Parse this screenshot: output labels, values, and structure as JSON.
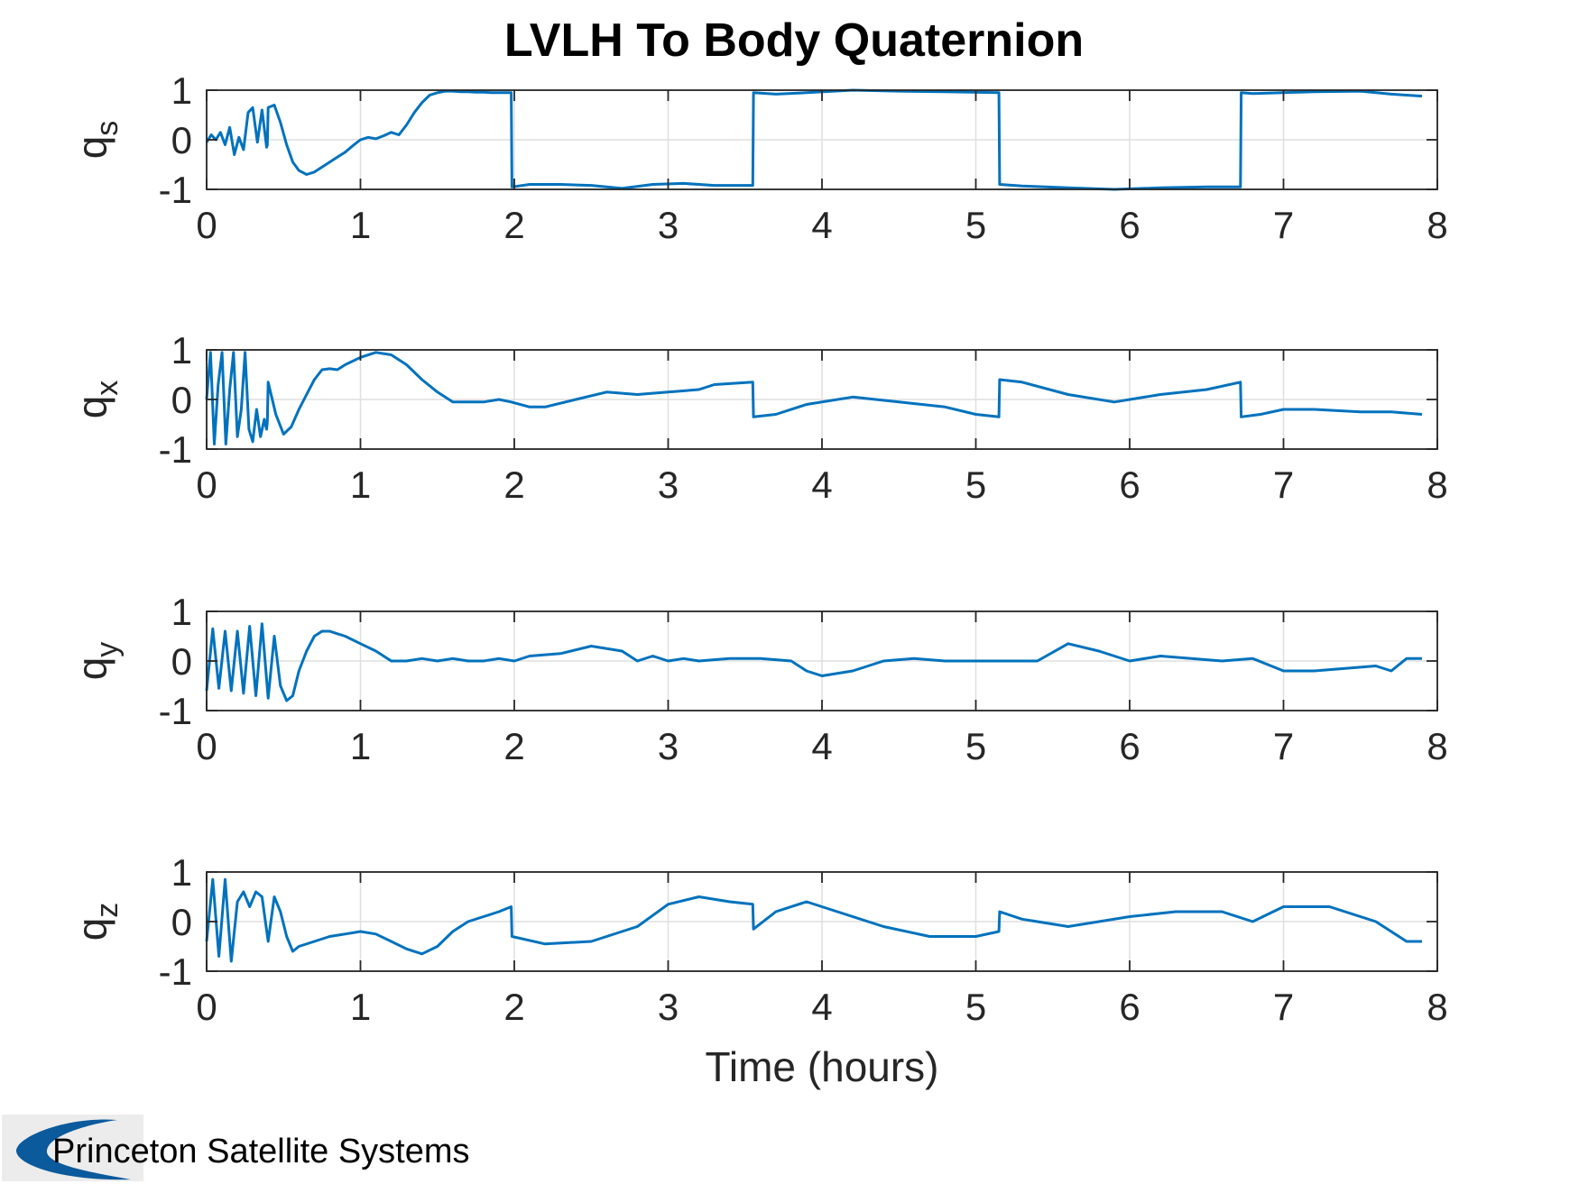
{
  "figure_title": "LVLH To Body Quaternion",
  "brand": {
    "text": "Princeton Satellite Systems",
    "logo_color": "#0a5a9c"
  },
  "colors": {
    "line": "#0072bd",
    "axes": "#262626",
    "grid": "#dfdfdf"
  },
  "chart_data": [
    {
      "type": "line",
      "title": "LVLH To Body Quaternion",
      "ylabel": {
        "main": "q",
        "sub": "s"
      },
      "xlabel": "",
      "xlim": [
        0,
        8
      ],
      "ylim": [
        -1,
        1
      ],
      "xticks": [
        "0",
        "1",
        "2",
        "3",
        "4",
        "5",
        "6",
        "7",
        "8"
      ],
      "yticks": [
        "1",
        "0",
        "-1"
      ],
      "grid": true,
      "series": [
        {
          "x": [
            0,
            0.03,
            0.06,
            0.09,
            0.12,
            0.15,
            0.18,
            0.21,
            0.24,
            0.27,
            0.3,
            0.33,
            0.36,
            0.39,
            0.395,
            0.4,
            0.44,
            0.48,
            0.52,
            0.56,
            0.6,
            0.65,
            0.7,
            0.75,
            0.8,
            0.85,
            0.9,
            0.95,
            1,
            1.05,
            1.1,
            1.15,
            1.2,
            1.25,
            1.3,
            1.35,
            1.4,
            1.45,
            1.5,
            1.55,
            1.6,
            1.65,
            1.7,
            1.75,
            1.8,
            1.85,
            1.9,
            1.98,
            1.985,
            2.1,
            2.3,
            2.5,
            2.7,
            2.9,
            3.1,
            3.3,
            3.55,
            3.555,
            3.7,
            3.9,
            4.2,
            4.5,
            4.8,
            5.15,
            5.155,
            5.3,
            5.6,
            5.9,
            6.2,
            6.5,
            6.72,
            6.725,
            6.8,
            7,
            7.2,
            7.5,
            7.7,
            7.9
          ],
          "y": [
            -0.05,
            0.1,
            0.0,
            0.15,
            -0.1,
            0.25,
            -0.3,
            0.05,
            -0.2,
            0.55,
            0.65,
            -0.05,
            0.6,
            -0.15,
            -0.1,
            0.65,
            0.7,
            0.35,
            -0.1,
            -0.45,
            -0.62,
            -0.7,
            -0.65,
            -0.55,
            -0.45,
            -0.35,
            -0.25,
            -0.12,
            0.0,
            0.05,
            0.02,
            0.08,
            0.15,
            0.1,
            0.3,
            0.55,
            0.75,
            0.9,
            0.95,
            0.98,
            0.98,
            0.97,
            0.97,
            0.96,
            0.96,
            0.95,
            0.95,
            0.95,
            -0.95,
            -0.9,
            -0.9,
            -0.92,
            -0.98,
            -0.9,
            -0.88,
            -0.92,
            -0.92,
            0.95,
            0.92,
            0.95,
            1.0,
            0.98,
            0.97,
            0.95,
            -0.9,
            -0.93,
            -0.97,
            -1.0,
            -0.97,
            -0.95,
            -0.95,
            0.95,
            0.93,
            0.95,
            0.97,
            0.98,
            0.92,
            0.88
          ]
        }
      ]
    },
    {
      "type": "line",
      "title": "",
      "ylabel": {
        "main": "q",
        "sub": "x"
      },
      "xlabel": "",
      "xlim": [
        0,
        8
      ],
      "ylim": [
        -1,
        1
      ],
      "xticks": [
        "0",
        "1",
        "2",
        "3",
        "4",
        "5",
        "6",
        "7",
        "8"
      ],
      "yticks": [
        "1",
        "0",
        "-1"
      ],
      "grid": true,
      "series": [
        {
          "x": [
            0,
            0.025,
            0.05,
            0.075,
            0.1,
            0.125,
            0.15,
            0.175,
            0.2,
            0.225,
            0.25,
            0.275,
            0.3,
            0.325,
            0.35,
            0.375,
            0.39,
            0.395,
            0.4,
            0.45,
            0.5,
            0.55,
            0.6,
            0.65,
            0.7,
            0.75,
            0.8,
            0.85,
            0.9,
            1,
            1.1,
            1.2,
            1.3,
            1.4,
            1.5,
            1.6,
            1.7,
            1.8,
            1.9,
            1.98,
            2.1,
            2.2,
            2.4,
            2.6,
            2.8,
            3,
            3.2,
            3.3,
            3.55,
            3.555,
            3.7,
            3.9,
            4.2,
            4.5,
            4.8,
            5,
            5.15,
            5.155,
            5.3,
            5.6,
            5.9,
            6.2,
            6.5,
            6.72,
            6.725,
            6.85,
            7,
            7.2,
            7.5,
            7.7,
            7.9
          ],
          "y": [
            0,
            0.95,
            -0.9,
            0.3,
            0.95,
            -0.9,
            0.2,
            0.95,
            -0.75,
            -0.2,
            0.95,
            -0.6,
            -0.85,
            -0.2,
            -0.75,
            -0.4,
            -0.6,
            -0.45,
            0.35,
            -0.3,
            -0.7,
            -0.55,
            -0.2,
            0.1,
            0.4,
            0.6,
            0.62,
            0.6,
            0.7,
            0.85,
            0.95,
            0.9,
            0.7,
            0.4,
            0.15,
            -0.05,
            -0.05,
            -0.05,
            0.0,
            -0.05,
            -0.15,
            -0.15,
            0.0,
            0.15,
            0.1,
            0.15,
            0.2,
            0.3,
            0.35,
            -0.35,
            -0.3,
            -0.1,
            0.05,
            -0.05,
            -0.15,
            -0.3,
            -0.35,
            0.4,
            0.35,
            0.1,
            -0.05,
            0.1,
            0.2,
            0.35,
            -0.35,
            -0.3,
            -0.2,
            -0.2,
            -0.25,
            -0.25,
            -0.3
          ]
        }
      ]
    },
    {
      "type": "line",
      "title": "",
      "ylabel": {
        "main": "q",
        "sub": "y"
      },
      "xlabel": "",
      "xlim": [
        0,
        8
      ],
      "ylim": [
        -1,
        1
      ],
      "xticks": [
        "0",
        "1",
        "2",
        "3",
        "4",
        "5",
        "6",
        "7",
        "8"
      ],
      "yticks": [
        "1",
        "0",
        "-1"
      ],
      "grid": true,
      "series": [
        {
          "x": [
            0,
            0.04,
            0.08,
            0.12,
            0.16,
            0.2,
            0.24,
            0.28,
            0.32,
            0.36,
            0.4,
            0.44,
            0.48,
            0.52,
            0.56,
            0.6,
            0.65,
            0.7,
            0.75,
            0.8,
            0.85,
            0.9,
            1,
            1.1,
            1.2,
            1.3,
            1.4,
            1.5,
            1.6,
            1.7,
            1.8,
            1.9,
            2,
            2.1,
            2.3,
            2.5,
            2.7,
            2.8,
            2.9,
            3,
            3.1,
            3.2,
            3.4,
            3.6,
            3.8,
            3.9,
            4,
            4.2,
            4.4,
            4.6,
            4.8,
            5,
            5.2,
            5.4,
            5.6,
            5.8,
            6,
            6.2,
            6.4,
            6.6,
            6.8,
            7,
            7.2,
            7.4,
            7.6,
            7.7,
            7.8,
            7.9
          ],
          "y": [
            -0.6,
            0.65,
            -0.55,
            0.6,
            -0.6,
            0.6,
            -0.65,
            0.7,
            -0.7,
            0.75,
            -0.75,
            0.5,
            -0.5,
            -0.8,
            -0.7,
            -0.2,
            0.2,
            0.5,
            0.6,
            0.6,
            0.55,
            0.5,
            0.35,
            0.2,
            0.0,
            0.0,
            0.05,
            0.0,
            0.05,
            0.0,
            0.0,
            0.05,
            0.0,
            0.1,
            0.15,
            0.3,
            0.2,
            0.0,
            0.1,
            0.0,
            0.05,
            0.0,
            0.05,
            0.05,
            0.0,
            -0.2,
            -0.3,
            -0.2,
            0.0,
            0.05,
            0.0,
            0.0,
            0.0,
            0.0,
            0.35,
            0.2,
            0.0,
            0.1,
            0.05,
            0.0,
            0.05,
            -0.2,
            -0.2,
            -0.15,
            -0.1,
            -0.2,
            0.05,
            0.05
          ]
        }
      ]
    },
    {
      "type": "line",
      "title": "",
      "ylabel": {
        "main": "q",
        "sub": "z"
      },
      "xlabel": "Time (hours)",
      "xlim": [
        0,
        8
      ],
      "ylim": [
        -1,
        1
      ],
      "xticks": [
        "0",
        "1",
        "2",
        "3",
        "4",
        "5",
        "6",
        "7",
        "8"
      ],
      "yticks": [
        "1",
        "0",
        "-1"
      ],
      "grid": true,
      "series": [
        {
          "x": [
            0,
            0.04,
            0.08,
            0.12,
            0.16,
            0.2,
            0.24,
            0.28,
            0.32,
            0.36,
            0.4,
            0.44,
            0.48,
            0.52,
            0.56,
            0.6,
            0.7,
            0.8,
            0.9,
            1,
            1.1,
            1.2,
            1.3,
            1.4,
            1.5,
            1.6,
            1.7,
            1.8,
            1.9,
            1.98,
            1.985,
            2.2,
            2.5,
            2.8,
            3,
            3.2,
            3.4,
            3.55,
            3.555,
            3.7,
            3.9,
            4.1,
            4.4,
            4.7,
            5,
            5.15,
            5.155,
            5.3,
            5.6,
            6,
            6.3,
            6.6,
            6.8,
            7,
            7.3,
            7.6,
            7.8,
            7.9
          ],
          "y": [
            -0.4,
            0.85,
            -0.7,
            0.85,
            -0.8,
            0.4,
            0.6,
            0.3,
            0.6,
            0.5,
            -0.4,
            0.5,
            0.2,
            -0.3,
            -0.6,
            -0.5,
            -0.4,
            -0.3,
            -0.25,
            -0.2,
            -0.25,
            -0.4,
            -0.55,
            -0.65,
            -0.5,
            -0.2,
            0.0,
            0.1,
            0.2,
            0.3,
            -0.3,
            -0.45,
            -0.4,
            -0.1,
            0.35,
            0.5,
            0.4,
            0.35,
            -0.15,
            0.2,
            0.4,
            0.2,
            -0.1,
            -0.3,
            -0.3,
            -0.2,
            0.2,
            0.05,
            -0.1,
            0.1,
            0.2,
            0.2,
            0.0,
            0.3,
            0.3,
            0.0,
            -0.4,
            -0.4
          ]
        }
      ]
    }
  ]
}
